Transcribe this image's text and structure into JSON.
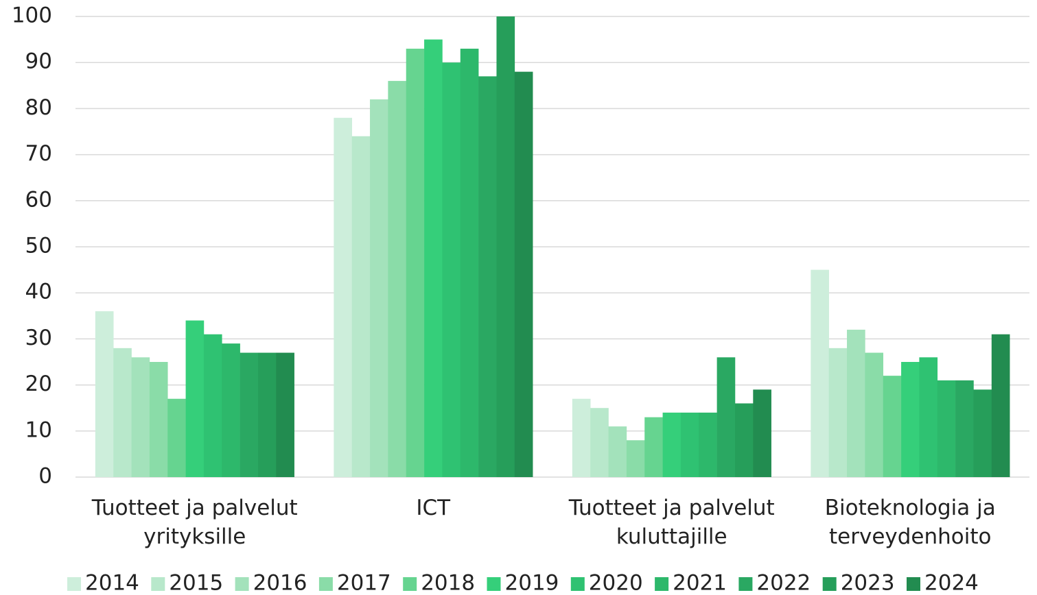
{
  "chart_data": {
    "type": "bar",
    "categories": [
      "Tuotteet ja palvelut\nyrityksille",
      "ICT",
      "Tuotteet ja palvelut\nkuluttajille",
      "Bioteknologia ja\nterveydenhoito"
    ],
    "series": [
      {
        "name": "2014",
        "color": "#cdeedb",
        "values": [
          36,
          78,
          17,
          45
        ]
      },
      {
        "name": "2015",
        "color": "#b8e8cb",
        "values": [
          28,
          74,
          15,
          28
        ]
      },
      {
        "name": "2016",
        "color": "#a3e2bb",
        "values": [
          26,
          82,
          11,
          32
        ]
      },
      {
        "name": "2017",
        "color": "#8adca8",
        "values": [
          25,
          86,
          8,
          27
        ]
      },
      {
        "name": "2018",
        "color": "#66d490",
        "values": [
          17,
          93,
          13,
          22
        ]
      },
      {
        "name": "2019",
        "color": "#35cf7a",
        "values": [
          34,
          95,
          14,
          25
        ]
      },
      {
        "name": "2020",
        "color": "#2fc272",
        "values": [
          31,
          90,
          14,
          26
        ]
      },
      {
        "name": "2021",
        "color": "#2db86b",
        "values": [
          29,
          93,
          14,
          21
        ]
      },
      {
        "name": "2022",
        "color": "#2aa862",
        "values": [
          27,
          87,
          26,
          21
        ]
      },
      {
        "name": "2023",
        "color": "#269e5a",
        "values": [
          27,
          100,
          16,
          19
        ]
      },
      {
        "name": "2024",
        "color": "#228c50",
        "values": [
          27,
          88,
          19,
          31
        ]
      }
    ],
    "ylim": [
      0,
      100
    ],
    "yticks": [
      0,
      10,
      20,
      30,
      40,
      50,
      60,
      70,
      80,
      90,
      100
    ],
    "grid": true,
    "legend": "bottom"
  }
}
